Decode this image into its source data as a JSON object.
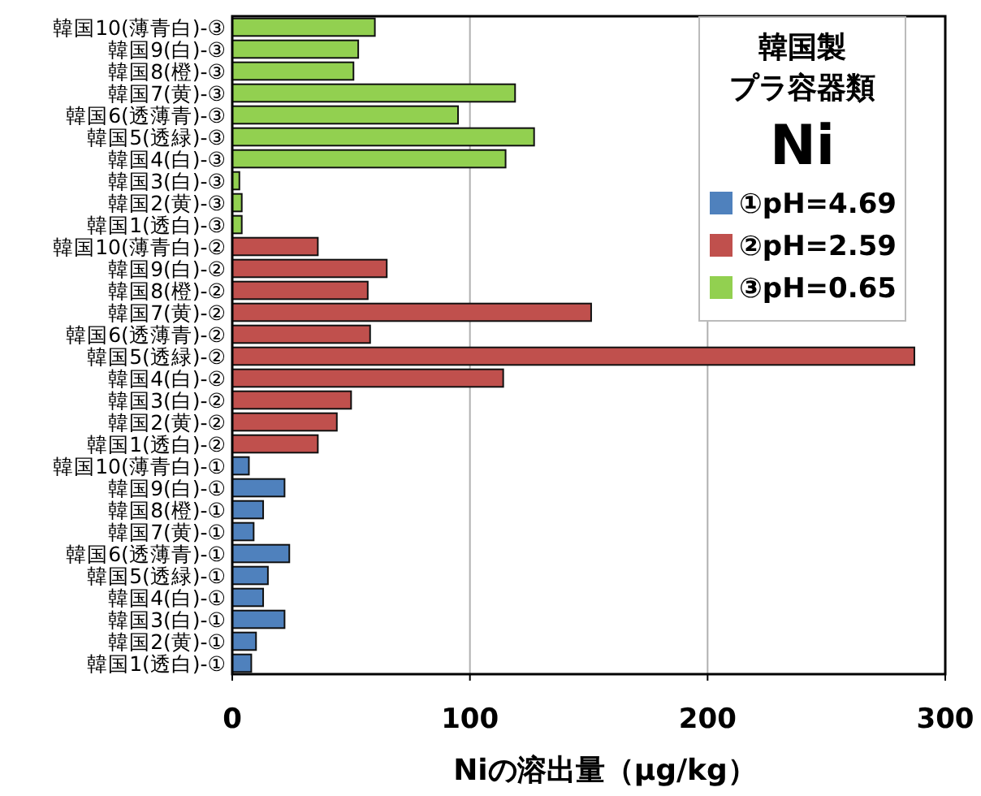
{
  "chart_data": {
    "type": "bar",
    "orientation": "horizontal",
    "title": "韓国製",
    "subtitle": "プラ容器類",
    "annotations": [
      "Ni"
    ],
    "xlabel": "Niの溶出量（μg/kg）",
    "categories": [
      "韓国10(薄青白)-③",
      "韓国9(白)-③",
      "韓国8(橙)-③",
      "韓国7(黄)-③",
      "韓国6(透薄青)-③",
      "韓国5(透緑)-③",
      "韓国4(白)-③",
      "韓国3(白)-③",
      "韓国2(黄)-③",
      "韓国1(透白)-③",
      "韓国10(薄青白)-②",
      "韓国9(白)-②",
      "韓国8(橙)-②",
      "韓国7(黄)-②",
      "韓国6(透薄青)-②",
      "韓国5(透緑)-②",
      "韓国4(白)-②",
      "韓国3(白)-②",
      "韓国2(黄)-②",
      "韓国1(透白)-②",
      "韓国10(薄青白)-①",
      "韓国9(白)-①",
      "韓国8(橙)-①",
      "韓国7(黄)-①",
      "韓国6(透薄青)-①",
      "韓国5(透緑)-①",
      "韓国4(白)-①",
      "韓国3(白)-①",
      "韓国2(黄)-①",
      "韓国1(透白)-①"
    ],
    "series": [
      {
        "name": "①pH=4.69",
        "color": "#4f81bd",
        "values": [
          null,
          null,
          null,
          null,
          null,
          null,
          null,
          null,
          null,
          null,
          null,
          null,
          null,
          null,
          null,
          null,
          null,
          null,
          null,
          null,
          7,
          22,
          13,
          9,
          24,
          15,
          13,
          22,
          10,
          8
        ]
      },
      {
        "name": "②pH=2.59",
        "color": "#c0504d",
        "values": [
          null,
          null,
          null,
          null,
          null,
          null,
          null,
          null,
          null,
          null,
          36,
          65,
          57,
          151,
          58,
          287,
          114,
          50,
          44,
          36,
          null,
          null,
          null,
          null,
          null,
          null,
          null,
          null,
          null,
          null
        ]
      },
      {
        "name": "③pH=0.65",
        "color": "#92d050",
        "values": [
          60,
          53,
          51,
          119,
          95,
          127,
          115,
          3,
          4,
          4,
          null,
          null,
          null,
          null,
          null,
          null,
          null,
          null,
          null,
          null,
          null,
          null,
          null,
          null,
          null,
          null,
          null,
          null,
          null,
          null
        ]
      }
    ],
    "xlim": [
      0,
      300
    ],
    "xticks": [
      0,
      100,
      200,
      300
    ],
    "grid": "x",
    "legend": "top right"
  }
}
